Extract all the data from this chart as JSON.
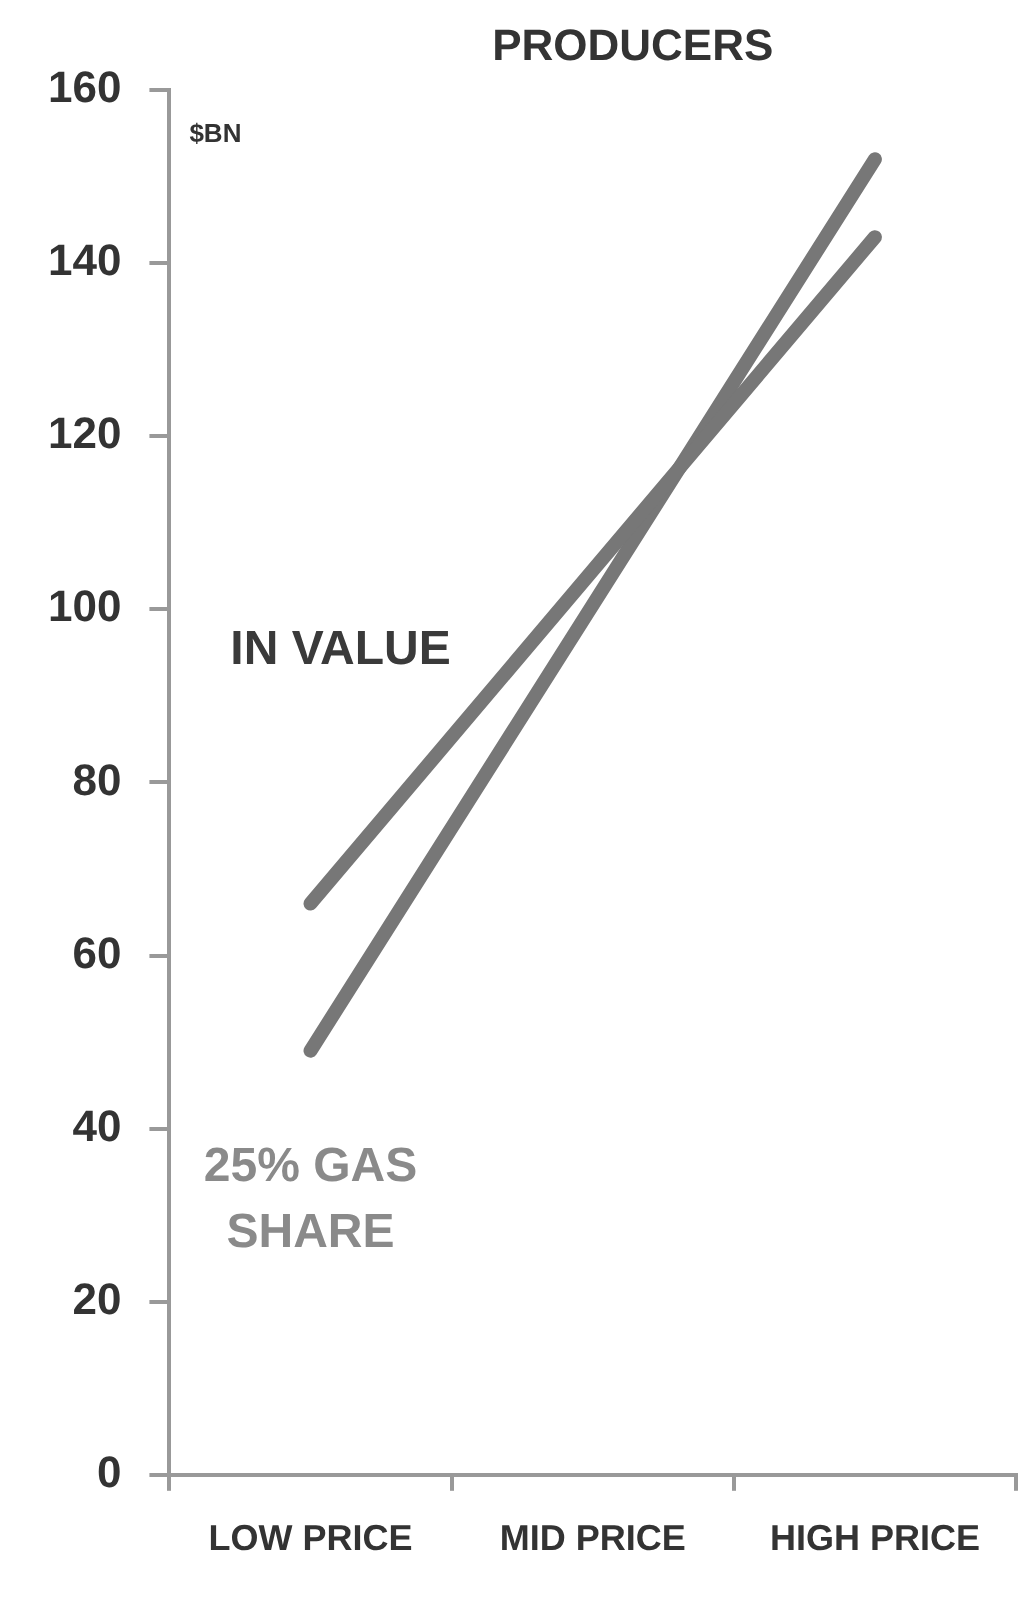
{
  "chart_data": {
    "type": "line",
    "title": "PRODUCERS",
    "ylabel": "$BN",
    "categories": [
      "LOW PRICE",
      "MID PRICE",
      "HIGH PRICE"
    ],
    "series": [
      {
        "name": "IN VALUE",
        "color": "#777777",
        "values": [
          66,
          null,
          143
        ]
      },
      {
        "name": "25% GAS SHARE",
        "color": "#777777",
        "values": [
          49,
          null,
          152
        ]
      }
    ],
    "ylim": [
      0,
      160
    ],
    "yticks": [
      0,
      20,
      40,
      60,
      80,
      100,
      120,
      140,
      160
    ],
    "grid": false,
    "legend": false,
    "marker": "none",
    "line_style": "solid"
  }
}
